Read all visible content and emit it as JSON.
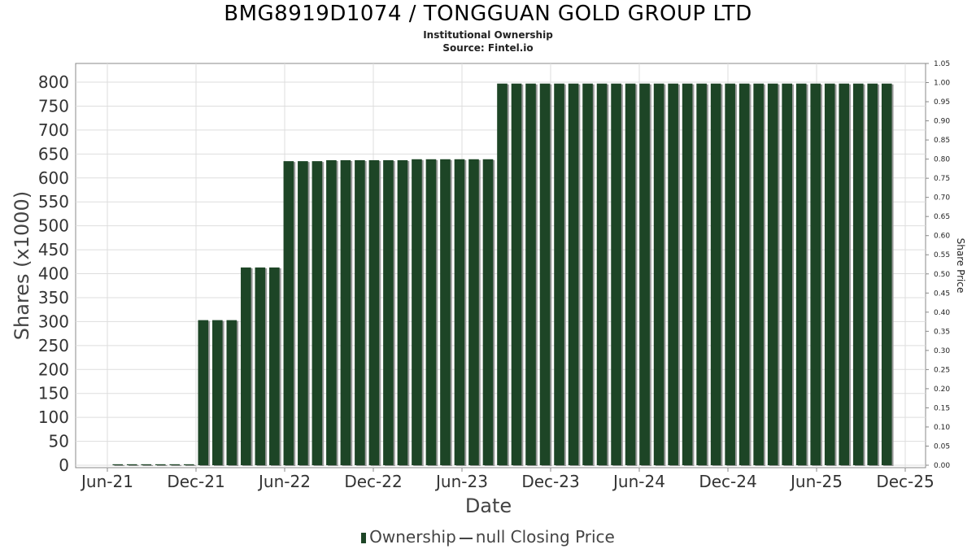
{
  "title": "BMG8919D1074 / TONGGUAN GOLD GROUP LTD",
  "subtitle": "Institutional Ownership",
  "source": "Source: Fintel.io",
  "legend": {
    "ownership_label": "Ownership",
    "price_label": "null Closing Price"
  },
  "colors": {
    "bar": "#1d4526",
    "bar_shadow": "#9a9a9a",
    "grid": "#dddddd",
    "axis": "#888888"
  },
  "chart_data": {
    "type": "bar",
    "xlabel": "Date",
    "ylabel": "Shares (x1000)",
    "y2label": "Share Price",
    "ylim": [
      0,
      820
    ],
    "yticks": [
      0,
      50,
      100,
      150,
      200,
      250,
      300,
      350,
      400,
      450,
      500,
      550,
      600,
      650,
      700,
      750,
      800
    ],
    "y2lim": [
      0,
      1.05
    ],
    "y2ticks": [
      "0.00",
      "0.05",
      "0.10",
      "0.15",
      "0.20",
      "0.25",
      "0.30",
      "0.35",
      "0.40",
      "0.45",
      "0.50",
      "0.55",
      "0.60",
      "0.65",
      "0.70",
      "0.75",
      "0.80",
      "0.85",
      "0.90",
      "0.95",
      "1.00",
      "1.05"
    ],
    "xticks": [
      "Jun-21",
      "Dec-21",
      "Jun-22",
      "Dec-22",
      "Jun-23",
      "Dec-23",
      "Jun-24",
      "Dec-24",
      "Jun-25",
      "Dec-25"
    ],
    "values": [
      2,
      2,
      2,
      2,
      2,
      2,
      303,
      303,
      303,
      413,
      413,
      413,
      635,
      635,
      635,
      637,
      637,
      637,
      637,
      637,
      637,
      639,
      639,
      639,
      639,
      639,
      639,
      797,
      797,
      797,
      797,
      797,
      797,
      797,
      797,
      797,
      797,
      797,
      797,
      797,
      797,
      797,
      797,
      797,
      797,
      797,
      797,
      797,
      797,
      797,
      797,
      797,
      797,
      797,
      797
    ]
  }
}
